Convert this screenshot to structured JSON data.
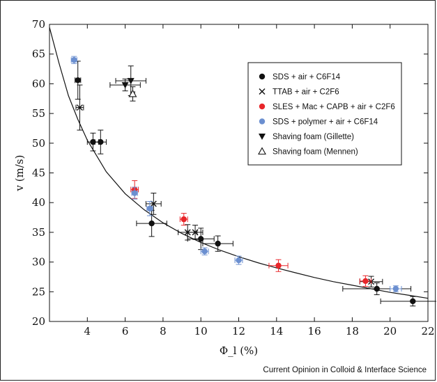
{
  "chart_data": {
    "type": "scatter",
    "xlabel": "Φ_l (%)",
    "ylabel": "v (m/s)",
    "xlim": [
      2,
      22
    ],
    "ylim": [
      20,
      70
    ],
    "xticks": [
      "4",
      "6",
      "8",
      "10",
      "12",
      "14",
      "16",
      "18",
      "20",
      "22"
    ],
    "yticks": [
      "20",
      "25",
      "30",
      "35",
      "40",
      "45",
      "50",
      "55",
      "60",
      "65",
      "70"
    ],
    "legend_position": "top-right",
    "series": [
      {
        "name": "SDS + air + C6F14",
        "marker": "circle",
        "color": "#111111",
        "points": [
          {
            "x": 3.5,
            "y": 60.6,
            "xerr": 0.15,
            "yerr": 3.2
          },
          {
            "x": 4.3,
            "y": 50.2,
            "xerr": 0.3,
            "yerr": 1.5
          },
          {
            "x": 4.7,
            "y": 50.2,
            "xerr": 0.3,
            "yerr": 2.0
          },
          {
            "x": 7.4,
            "y": 36.5,
            "xerr": 0.8,
            "yerr": 2.2
          },
          {
            "x": 10.0,
            "y": 33.9,
            "xerr": 0.7,
            "yerr": 1.8
          },
          {
            "x": 10.9,
            "y": 33.1,
            "xerr": 0.8,
            "yerr": 1.3
          },
          {
            "x": 19.3,
            "y": 25.5,
            "xerr": 1.8,
            "yerr": 1.0
          },
          {
            "x": 21.2,
            "y": 23.4,
            "xerr": 1.7,
            "yerr": 0.8
          }
        ]
      },
      {
        "name": "TTAB + air + C2F6",
        "marker": "cross",
        "color": "#111111",
        "points": [
          {
            "x": 3.6,
            "y": 56.0,
            "xerr": 0.2,
            "yerr": 3.8
          },
          {
            "x": 7.5,
            "y": 39.8,
            "xerr": 0.4,
            "yerr": 1.8
          },
          {
            "x": 9.3,
            "y": 35.0,
            "xerr": 0.5,
            "yerr": 1.3
          },
          {
            "x": 9.7,
            "y": 35.0,
            "xerr": 0.4,
            "yerr": 1.2
          },
          {
            "x": 19.0,
            "y": 26.7,
            "xerr": 0.6,
            "yerr": 0.9
          }
        ]
      },
      {
        "name": "SLES + Mac + CAPB + air + C2F6",
        "marker": "circle",
        "color": "#e8262a",
        "points": [
          {
            "x": 6.5,
            "y": 42.2,
            "xerr": 0.2,
            "yerr": 1.5
          },
          {
            "x": 9.1,
            "y": 37.2,
            "xerr": 0.2,
            "yerr": 1.0
          },
          {
            "x": 14.1,
            "y": 29.4,
            "xerr": 0.5,
            "yerr": 1.0
          },
          {
            "x": 18.7,
            "y": 26.8,
            "xerr": 0.3,
            "yerr": 0.9
          }
        ]
      },
      {
        "name": "SDS + polymer + air + C6F14",
        "marker": "circle",
        "color": "#6b8fd0",
        "points": [
          {
            "x": 3.3,
            "y": 64.0,
            "xerr": 0.15,
            "yerr": 0.6
          },
          {
            "x": 6.5,
            "y": 41.6,
            "xerr": 0.15,
            "yerr": 1.0
          },
          {
            "x": 7.3,
            "y": 39.0,
            "xerr": 0.15,
            "yerr": 1.2
          },
          {
            "x": 10.2,
            "y": 31.8,
            "xerr": 0.2,
            "yerr": 0.6
          },
          {
            "x": 12.0,
            "y": 30.3,
            "xerr": 0.2,
            "yerr": 0.7
          },
          {
            "x": 20.3,
            "y": 25.5,
            "xerr": 0.3,
            "yerr": 0.5
          }
        ]
      },
      {
        "name": "Shaving foam (Gillette)",
        "marker": "triangle-down",
        "color": "#111111",
        "points": [
          {
            "x": 6.0,
            "y": 59.8,
            "xerr": 0.8,
            "yerr": 1.0
          },
          {
            "x": 6.3,
            "y": 60.5,
            "xerr": 0.8,
            "yerr": 2.5
          }
        ]
      },
      {
        "name": "Shaving foam (Mennen)",
        "marker": "triangle-up-open",
        "color": "#111111",
        "points": [
          {
            "x": 6.4,
            "y": 58.3,
            "xerr": 0.1,
            "yerr": 1.2
          }
        ]
      }
    ],
    "fit_curve": {
      "points": [
        [
          2.0,
          69.5
        ],
        [
          2.5,
          63.5
        ],
        [
          3.0,
          58.0
        ],
        [
          3.5,
          54.0
        ],
        [
          4.0,
          50.5
        ],
        [
          5.0,
          45.2
        ],
        [
          6.0,
          41.5
        ],
        [
          7.0,
          38.8
        ],
        [
          8.0,
          36.6
        ],
        [
          9.0,
          34.8
        ],
        [
          10.0,
          33.3
        ],
        [
          11.0,
          32.0
        ],
        [
          12.0,
          30.9
        ],
        [
          13.0,
          29.9
        ],
        [
          14.0,
          29.0
        ],
        [
          15.0,
          28.2
        ],
        [
          16.0,
          27.4
        ],
        [
          17.0,
          26.7
        ],
        [
          18.0,
          26.1
        ],
        [
          19.0,
          25.5
        ],
        [
          20.0,
          24.9
        ],
        [
          21.0,
          24.4
        ],
        [
          22.0,
          23.9
        ]
      ]
    }
  },
  "credit": "Current Opinion in Colloid & Interface Science"
}
